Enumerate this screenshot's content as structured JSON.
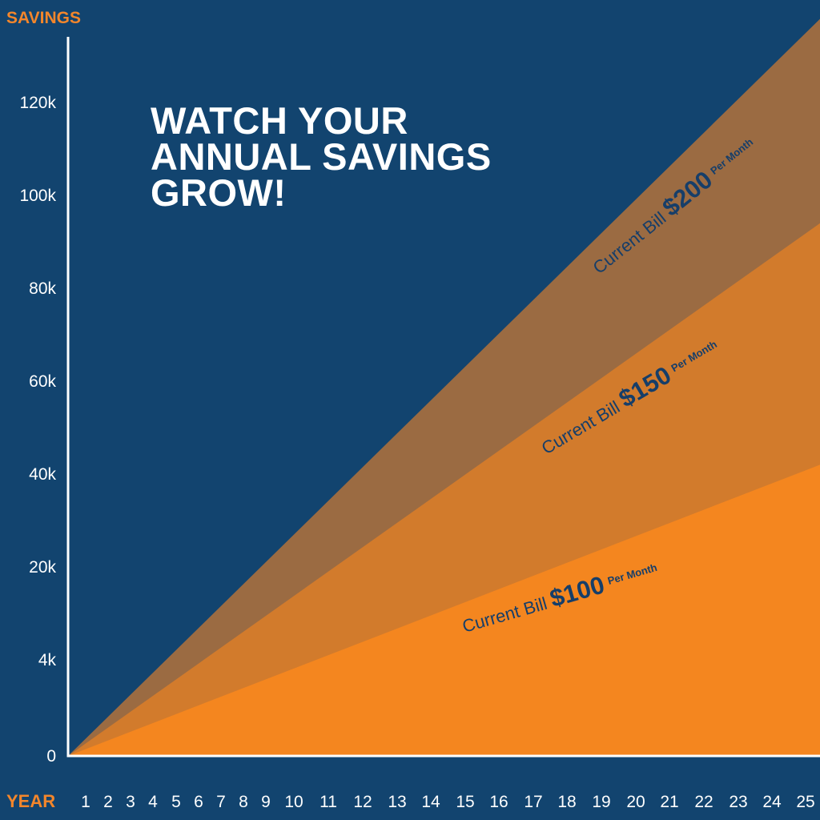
{
  "chart_data": {
    "type": "area",
    "title": "WATCH YOUR ANNUAL SAVINGS GROW!",
    "title_lines": [
      "WATCH YOUR",
      "ANNUAL SAVINGS",
      "GROW!"
    ],
    "ylabel": "SAVINGS",
    "xlabel": "YEAR",
    "x": [
      1,
      2,
      3,
      4,
      5,
      6,
      7,
      8,
      9,
      10,
      11,
      12,
      13,
      14,
      15,
      16,
      17,
      18,
      19,
      20,
      21,
      22,
      23,
      24,
      25
    ],
    "x_tick_labels": [
      "1",
      "2",
      "3",
      "4",
      "5",
      "6",
      "7",
      "8",
      "9",
      "10",
      "11",
      "12",
      "13",
      "14",
      "15",
      "16",
      "17",
      "18",
      "19",
      "20",
      "21",
      "22",
      "23",
      "24",
      "25"
    ],
    "y_tick_labels": [
      "0",
      "4k",
      "20k",
      "40k",
      "60k",
      "80k",
      "100k",
      "120k"
    ],
    "grid": false,
    "legend": "none",
    "series": [
      {
        "bill": "$200",
        "label_prefix": "Current Bill",
        "label_suffix": "Per Month",
        "end_value": 138000,
        "color": "#9b6b42"
      },
      {
        "bill": "$150",
        "label_prefix": "Current Bill",
        "label_suffix": "Per Month",
        "end_value": 94000,
        "color": "#d27b2c"
      },
      {
        "bill": "$100",
        "label_prefix": "Current Bill",
        "label_suffix": "Per Month",
        "end_value": 42000,
        "color": "#f4861f"
      }
    ],
    "colors": {
      "background": "#12446f",
      "axis": "#ffffff",
      "axis_label": "#f3862b",
      "tick_label": "#ffffff",
      "band_label": "#163e69"
    }
  }
}
